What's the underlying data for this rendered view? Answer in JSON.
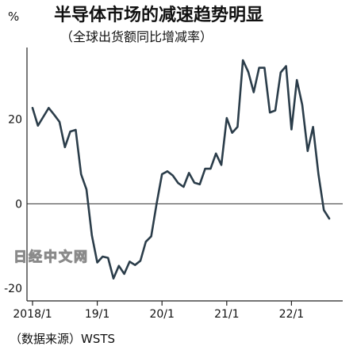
{
  "chart_data": {
    "type": "line",
    "title": "半导体市场的减速趋势明显",
    "subtitle": "（全球出货额同比增减率）",
    "unit_label": "%",
    "source": "（数据来源）WSTS",
    "watermark": "日经中文网",
    "y_ticks": [
      "20",
      "0",
      "-20"
    ],
    "x_ticks": [
      "2018/1",
      "19/1",
      "20/1",
      "21/1",
      "22/1"
    ],
    "ylim": [
      -23,
      37
    ],
    "series_color": "#2b3d4a",
    "series": [
      {
        "values": [
          [
            "2018-01",
            22.7
          ],
          [
            "2018-02",
            18.5
          ],
          [
            "2018-03",
            20.6
          ],
          [
            "2018-04",
            22.7
          ],
          [
            "2018-05",
            21.1
          ],
          [
            "2018-06",
            19.4
          ],
          [
            "2018-07",
            13.4
          ],
          [
            "2018-08",
            17.1
          ],
          [
            "2018-09",
            17.5
          ],
          [
            "2018-10",
            7.0
          ],
          [
            "2018-11",
            3.4
          ],
          [
            "2018-12",
            -7.5
          ],
          [
            "2019-01",
            -13.9
          ],
          [
            "2019-02",
            -12.5
          ],
          [
            "2019-03",
            -12.8
          ],
          [
            "2019-04",
            -17.7
          ],
          [
            "2019-05",
            -14.7
          ],
          [
            "2019-06",
            -16.6
          ],
          [
            "2019-07",
            -13.7
          ],
          [
            "2019-08",
            -14.5
          ],
          [
            "2019-09",
            -13.5
          ],
          [
            "2019-10",
            -9.0
          ],
          [
            "2019-11",
            -7.7
          ],
          [
            "2019-12",
            0.0
          ],
          [
            "2020-01",
            7.0
          ],
          [
            "2020-02",
            7.7
          ],
          [
            "2020-03",
            6.7
          ],
          [
            "2020-04",
            4.9
          ],
          [
            "2020-05",
            4.0
          ],
          [
            "2020-06",
            7.3
          ],
          [
            "2020-07",
            5.0
          ],
          [
            "2020-08",
            4.6
          ],
          [
            "2020-09",
            8.3
          ],
          [
            "2020-10",
            8.3
          ],
          [
            "2020-11",
            11.9
          ],
          [
            "2020-12",
            9.2
          ],
          [
            "2021-01",
            20.3
          ],
          [
            "2021-02",
            16.8
          ],
          [
            "2021-03",
            18.2
          ],
          [
            "2021-04",
            34.0
          ],
          [
            "2021-05",
            31.2
          ],
          [
            "2021-06",
            26.4
          ],
          [
            "2021-07",
            32.2
          ],
          [
            "2021-08",
            32.2
          ],
          [
            "2021-09",
            21.6
          ],
          [
            "2021-10",
            22.1
          ],
          [
            "2021-11",
            31.1
          ],
          [
            "2021-12",
            32.6
          ],
          [
            "2022-01",
            17.6
          ],
          [
            "2022-02",
            29.3
          ],
          [
            "2022-03",
            23.4
          ],
          [
            "2022-04",
            12.5
          ],
          [
            "2022-05",
            18.2
          ],
          [
            "2022-06",
            7.0
          ],
          [
            "2022-07",
            -1.5
          ],
          [
            "2022-08",
            -3.5
          ]
        ]
      }
    ]
  }
}
